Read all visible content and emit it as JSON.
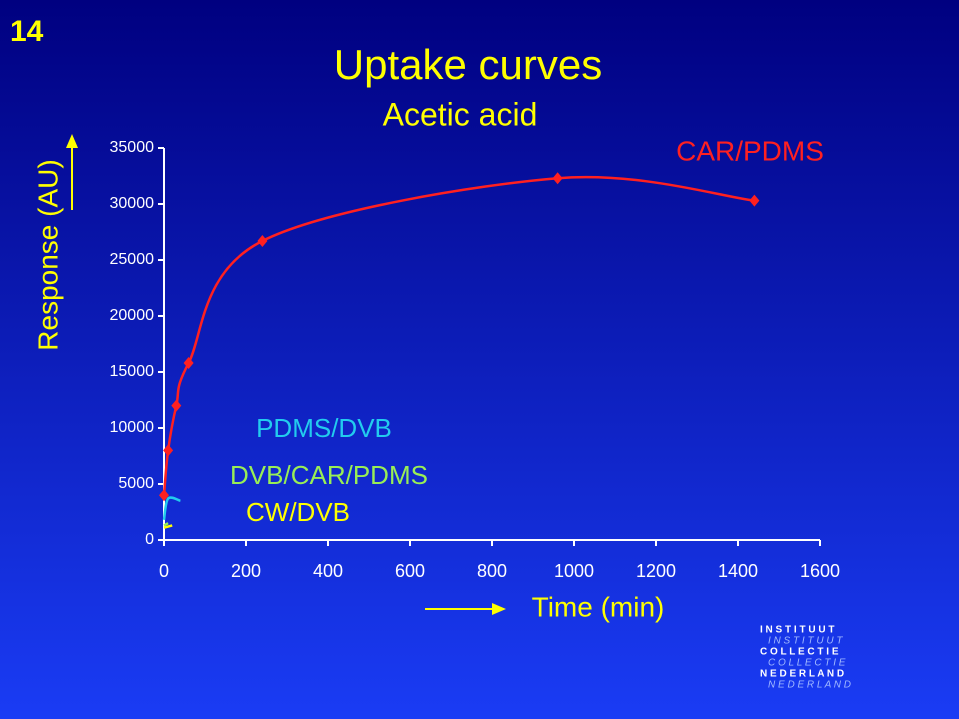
{
  "slide_number": "14",
  "logo": [
    "I N S T I T U U T",
    "I N S T I T U U T",
    "C O L L E C T I E",
    "C O L L E C T I E",
    "N E D E R L A N D",
    "N E D E R L A N D"
  ],
  "chart_data": {
    "type": "line",
    "title": "Uptake curves",
    "subtitle": "Acetic acid",
    "y_label": "Response (AU)",
    "x_label": "Time (min)",
    "xlim": [
      0,
      1600
    ],
    "xticks": [
      0,
      200,
      400,
      600,
      800,
      1000,
      1200,
      1400,
      1600
    ],
    "ylim": [
      0,
      35000
    ],
    "yticks": [
      0,
      5000,
      10000,
      15000,
      20000,
      25000,
      30000,
      35000
    ],
    "series": [
      {
        "name": "CAR/PDMS",
        "color": "#ff2020",
        "marker": "diamond",
        "x": [
          0,
          10,
          30,
          60,
          240,
          960,
          1440
        ],
        "values": [
          4000,
          8000,
          12000,
          15800,
          26700,
          32300,
          30300
        ]
      },
      {
        "name": "PDMS/DVB",
        "color": "#22ccee",
        "x": [
          0,
          10,
          40
        ],
        "values": [
          1800,
          3700,
          3500
        ]
      },
      {
        "name": "DVB/CAR/PDMS",
        "color": "#99ee55",
        "x": [
          0,
          10
        ],
        "values": [
          1300,
          1500
        ]
      },
      {
        "name": "CW/DVB",
        "color": "#ffff00",
        "x": [
          0,
          20
        ],
        "values": [
          1100,
          1300
        ]
      }
    ]
  }
}
